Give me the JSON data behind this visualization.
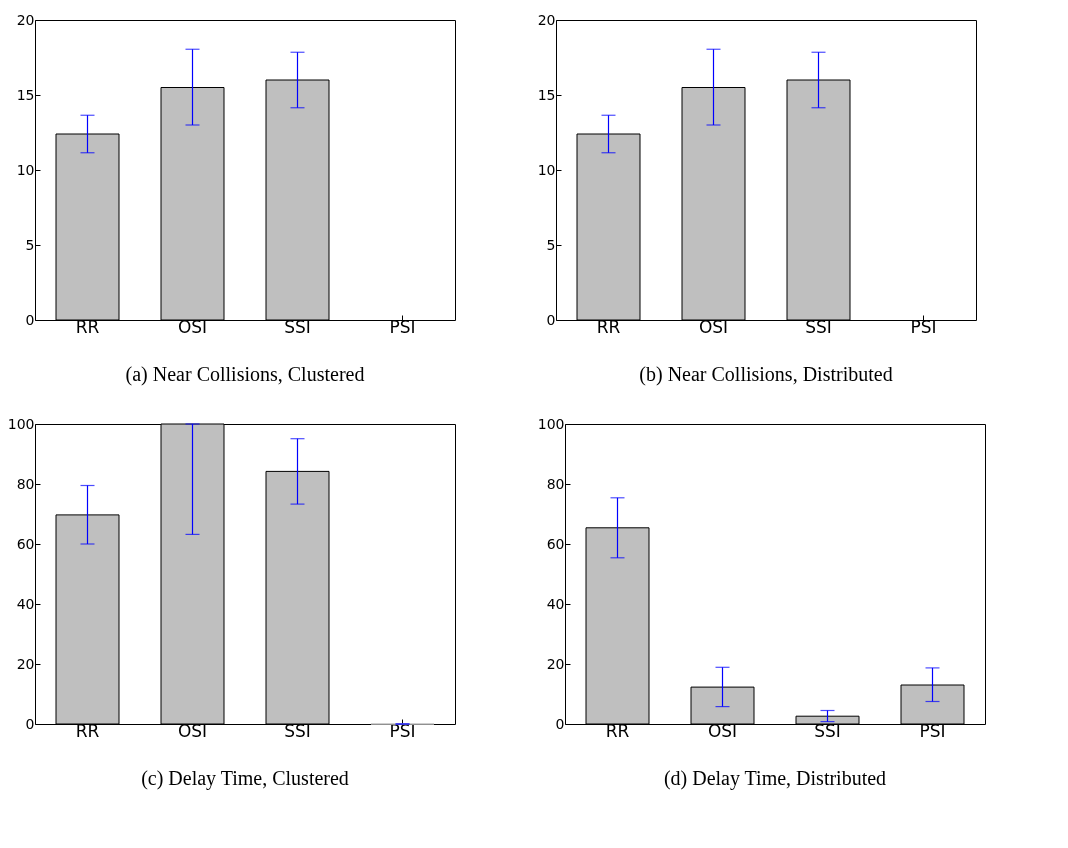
{
  "chart_data": [
    {
      "type": "bar",
      "title": "(a) Near Collisions, Clustered",
      "categories": [
        "RR",
        "OSI",
        "SSI",
        "PSI"
      ],
      "series": [
        {
          "color": "#bfbfbf",
          "values": [
            12.4,
            15.5,
            16.0,
            null
          ],
          "errors": [
            [
              11.15,
              13.65
            ],
            [
              13.0,
              18.05
            ],
            [
              14.15,
              17.85
            ],
            null
          ]
        }
      ],
      "ylim": [
        0,
        20
      ],
      "yticks": [
        0,
        5,
        10,
        15,
        20
      ],
      "grid": false,
      "legend": false
    },
    {
      "type": "bar",
      "title": "(b) Near Collisions, Distributed",
      "categories": [
        "RR",
        "OSI",
        "SSI",
        "PSI"
      ],
      "series": [
        {
          "color": "#bfbfbf",
          "values": [
            12.4,
            15.5,
            16.0,
            null
          ],
          "errors": [
            [
              11.15,
              13.65
            ],
            [
              13.0,
              18.05
            ],
            [
              14.15,
              17.85
            ],
            null
          ]
        }
      ],
      "ylim": [
        0,
        20
      ],
      "yticks": [
        0,
        5,
        10,
        15,
        20
      ],
      "grid": false,
      "legend": false
    },
    {
      "type": "bar",
      "title": "(c) Delay Time, Clustered",
      "categories": [
        "RR",
        "OSI",
        "SSI",
        "PSI"
      ],
      "series": [
        {
          "color": "#bfbfbf",
          "values": [
            69.7,
            100,
            84.2,
            0
          ],
          "errors": [
            [
              60,
              79.5
            ],
            [
              63.2,
              100
            ],
            [
              73.3,
              95.1
            ],
            [
              0,
              0
            ]
          ]
        }
      ],
      "ylim": [
        0,
        100
      ],
      "yticks": [
        0,
        20,
        40,
        60,
        80,
        100
      ],
      "grid": false,
      "legend": false
    },
    {
      "type": "bar",
      "title": "(d) Delay Time, Distributed",
      "categories": [
        "RR",
        "OSI",
        "SSI",
        "PSI"
      ],
      "series": [
        {
          "color": "#bfbfbf",
          "values": [
            65.4,
            12.3,
            2.6,
            13.0
          ],
          "errors": [
            [
              55.4,
              75.4
            ],
            [
              5.8,
              18.9
            ],
            [
              0.8,
              4.5
            ],
            [
              7.5,
              18.7
            ]
          ]
        }
      ],
      "ylim": [
        0,
        100
      ],
      "yticks": [
        0,
        20,
        40,
        60,
        80,
        100
      ],
      "grid": false,
      "legend": false
    }
  ]
}
